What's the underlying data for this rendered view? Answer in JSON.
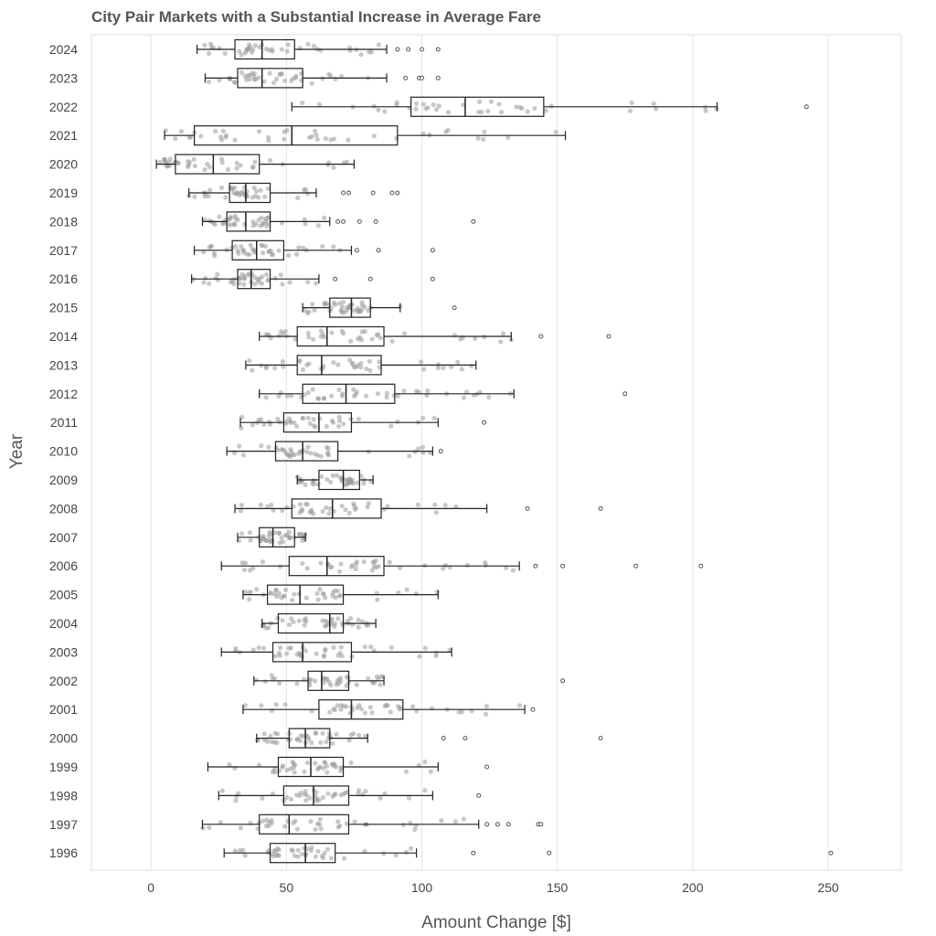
{
  "chart_data": {
    "type": "box",
    "title": "City Pair Markets with a Substantial Increase in Average Fare",
    "xlabel": "Amount Change [$]",
    "ylabel": "Year",
    "xlim": [
      -22,
      277
    ],
    "xticks": [
      0,
      50,
      100,
      150,
      200,
      250
    ],
    "grid": "vertical",
    "series": [
      {
        "year": "2024",
        "whisker_low": 17,
        "q1": 31,
        "median": 41,
        "q3": 53,
        "whisker_high": 87,
        "outliers": [
          91,
          95,
          100,
          106
        ]
      },
      {
        "year": "2023",
        "whisker_low": 20,
        "q1": 32,
        "median": 41,
        "q3": 56,
        "whisker_high": 87,
        "outliers": [
          94,
          99,
          100,
          106
        ]
      },
      {
        "year": "2022",
        "whisker_low": 52,
        "q1": 96,
        "median": 116,
        "q3": 145,
        "whisker_high": 209,
        "outliers": [
          242
        ]
      },
      {
        "year": "2021",
        "whisker_low": 5,
        "q1": 16,
        "median": 52,
        "q3": 91,
        "whisker_high": 153,
        "outliers": []
      },
      {
        "year": "2020",
        "whisker_low": 2,
        "q1": 9,
        "median": 23,
        "q3": 40,
        "whisker_high": 75,
        "outliers": []
      },
      {
        "year": "2019",
        "whisker_low": 14,
        "q1": 29,
        "median": 35,
        "q3": 44,
        "whisker_high": 61,
        "outliers": [
          71,
          73,
          82,
          89,
          91
        ]
      },
      {
        "year": "2018",
        "whisker_low": 19,
        "q1": 28,
        "median": 35,
        "q3": 44,
        "whisker_high": 66,
        "outliers": [
          69,
          71,
          77,
          83,
          119
        ]
      },
      {
        "year": "2017",
        "whisker_low": 16,
        "q1": 30,
        "median": 39,
        "q3": 49,
        "whisker_high": 74,
        "outliers": [
          76,
          84,
          104
        ]
      },
      {
        "year": "2016",
        "whisker_low": 15,
        "q1": 32,
        "median": 37,
        "q3": 44,
        "whisker_high": 62,
        "outliers": [
          68,
          81,
          104
        ]
      },
      {
        "year": "2015",
        "whisker_low": 56,
        "q1": 66,
        "median": 74,
        "q3": 81,
        "whisker_high": 92,
        "outliers": [
          112
        ]
      },
      {
        "year": "2014",
        "whisker_low": 40,
        "q1": 54,
        "median": 65,
        "q3": 86,
        "whisker_high": 133,
        "outliers": [
          144,
          169
        ]
      },
      {
        "year": "2013",
        "whisker_low": 35,
        "q1": 54,
        "median": 63,
        "q3": 85,
        "whisker_high": 120,
        "outliers": []
      },
      {
        "year": "2012",
        "whisker_low": 40,
        "q1": 56,
        "median": 72,
        "q3": 90,
        "whisker_high": 134,
        "outliers": [
          175
        ]
      },
      {
        "year": "2011",
        "whisker_low": 33,
        "q1": 49,
        "median": 62,
        "q3": 74,
        "whisker_high": 106,
        "outliers": [
          123
        ]
      },
      {
        "year": "2010",
        "whisker_low": 28,
        "q1": 46,
        "median": 56,
        "q3": 69,
        "whisker_high": 104,
        "outliers": [
          107
        ]
      },
      {
        "year": "2009",
        "whisker_low": 54,
        "q1": 62,
        "median": 71,
        "q3": 77,
        "whisker_high": 82,
        "outliers": []
      },
      {
        "year": "2008",
        "whisker_low": 31,
        "q1": 52,
        "median": 67,
        "q3": 85,
        "whisker_high": 124,
        "outliers": [
          139,
          166
        ]
      },
      {
        "year": "2007",
        "whisker_low": 32,
        "q1": 40,
        "median": 45,
        "q3": 53,
        "whisker_high": 57,
        "outliers": []
      },
      {
        "year": "2006",
        "whisker_low": 26,
        "q1": 51,
        "median": 65,
        "q3": 86,
        "whisker_high": 136,
        "outliers": [
          142,
          152,
          179,
          203
        ]
      },
      {
        "year": "2005",
        "whisker_low": 34,
        "q1": 43,
        "median": 55,
        "q3": 71,
        "whisker_high": 106,
        "outliers": []
      },
      {
        "year": "2004",
        "whisker_low": 41,
        "q1": 47,
        "median": 66,
        "q3": 71,
        "whisker_high": 83,
        "outliers": []
      },
      {
        "year": "2003",
        "whisker_low": 26,
        "q1": 45,
        "median": 56,
        "q3": 74,
        "whisker_high": 111,
        "outliers": []
      },
      {
        "year": "2002",
        "whisker_low": 38,
        "q1": 58,
        "median": 63,
        "q3": 73,
        "whisker_high": 86,
        "outliers": [
          152
        ]
      },
      {
        "year": "2001",
        "whisker_low": 34,
        "q1": 62,
        "median": 74,
        "q3": 93,
        "whisker_high": 138,
        "outliers": [
          141
        ]
      },
      {
        "year": "2000",
        "whisker_low": 39,
        "q1": 51,
        "median": 57,
        "q3": 66,
        "whisker_high": 80,
        "outliers": [
          108,
          116,
          166
        ]
      },
      {
        "year": "1999",
        "whisker_low": 21,
        "q1": 47,
        "median": 59,
        "q3": 71,
        "whisker_high": 106,
        "outliers": [
          124
        ]
      },
      {
        "year": "1998",
        "whisker_low": 25,
        "q1": 49,
        "median": 60,
        "q3": 73,
        "whisker_high": 104,
        "outliers": [
          121
        ]
      },
      {
        "year": "1997",
        "whisker_low": 19,
        "q1": 40,
        "median": 51,
        "q3": 73,
        "whisker_high": 121,
        "outliers": [
          124,
          128,
          132,
          143,
          144
        ]
      },
      {
        "year": "1996",
        "whisker_low": 27,
        "q1": 44,
        "median": 57,
        "q3": 68,
        "whisker_high": 98,
        "outliers": [
          119,
          147,
          251
        ]
      }
    ]
  }
}
